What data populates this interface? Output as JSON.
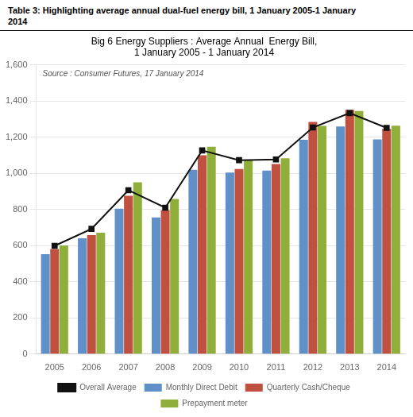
{
  "chart_data": {
    "type": "bar",
    "title": [
      "Big 6 Energy Suppliers : Average Annual  Energy Bill,",
      "1 January 2005 - 1 January 2014"
    ],
    "caption": [
      "Table 3: Highlighting average annual dual-fuel energy bill, 1 January 2005-1 January",
      "2014"
    ],
    "annotations": [
      "Source : Consumer Futures, 17 January 2014"
    ],
    "categories": [
      "2005",
      "2006",
      "2007",
      "2008",
      "2009",
      "2010",
      "2011",
      "2012",
      "2013",
      "2014"
    ],
    "series": [
      {
        "name": "Monthly Direct Debit",
        "color": "#6090C8",
        "values": [
          553,
          641,
          805,
          756,
          1020,
          1005,
          1016,
          1186,
          1260,
          1188
        ]
      },
      {
        "name": "Quarterly Cash/Cheque",
        "color": "#C05040",
        "values": [
          581,
          659,
          876,
          797,
          1100,
          1024,
          1052,
          1285,
          1352,
          1246
        ]
      },
      {
        "name": "Prepayment meter",
        "color": "#8FAF3A",
        "values": [
          601,
          672,
          951,
          858,
          1148,
          1075,
          1084,
          1263,
          1345,
          1264
        ]
      },
      {
        "name": "Overall Average",
        "type": "line",
        "marker": "square",
        "color": "#111111",
        "values": [
          599,
          693,
          907,
          810,
          1127,
          1073,
          1077,
          1254,
          1334,
          1252
        ]
      }
    ],
    "ylim": [
      0,
      1600
    ],
    "yticks": [
      0,
      200,
      400,
      600,
      800,
      1000,
      1200,
      1400,
      1600
    ],
    "grid": true,
    "legend": "bottom"
  }
}
